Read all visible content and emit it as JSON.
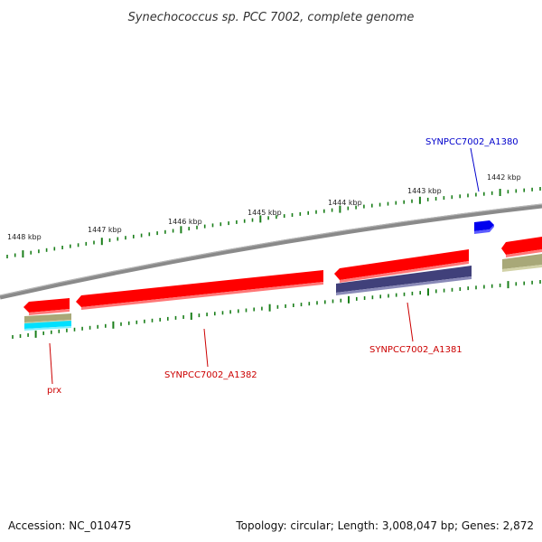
{
  "title": "Synechococcus sp. PCC 7002, complete genome",
  "footer": {
    "accession": "Accession: NC_010475",
    "summary": "Topology: circular; Length: 3,008,047 bp; Genes: 2,872"
  },
  "colors": {
    "backbone": "#8a8a8a",
    "tick": "#1a7f1a",
    "cds_forward": "#ff0000",
    "cds_reverse": "#ff0000",
    "cds_blue": "#0000ee",
    "cds_purple": "#40407a",
    "cds_olive": "#a8a878",
    "cds_cyan": "#00e0ff",
    "label_red": "#cc0000",
    "label_blue": "#0000cc"
  },
  "ticks": {
    "outer_labels": [
      "1448 kbp",
      "1447 kbp",
      "1446 kbp",
      "1445 kbp",
      "1444 kbp",
      "1443 kbp",
      "1442 kbp"
    ]
  },
  "genes": [
    {
      "name": "SYNPCC7002_A1380",
      "color": "label_blue"
    },
    {
      "name": "SYNPCC7002_A1381",
      "color": "label_red"
    },
    {
      "name": "SYNPCC7002_A1382",
      "color": "label_red"
    },
    {
      "name": "prx",
      "color": "label_red"
    }
  ]
}
